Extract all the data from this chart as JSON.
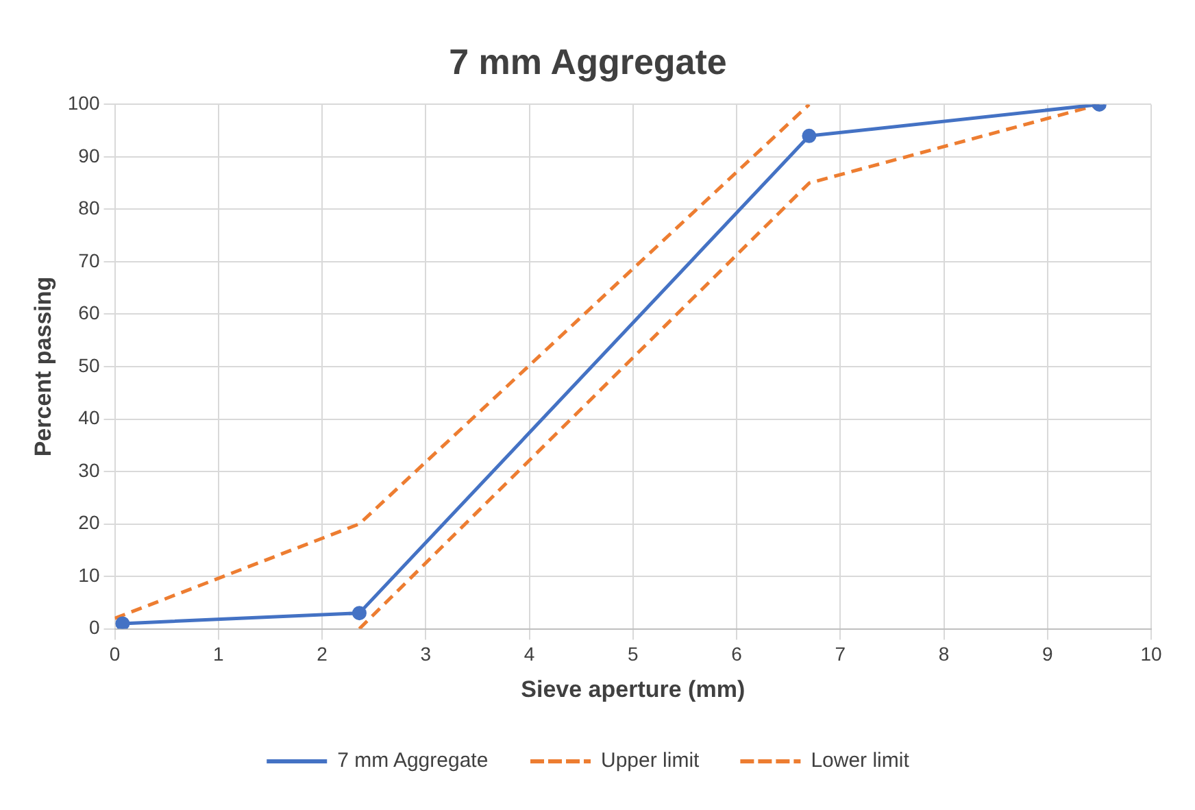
{
  "chart_data": {
    "type": "line",
    "title": "7 mm Aggregate",
    "xlabel": "Sieve aperture (mm)",
    "ylabel": "Percent passing",
    "series": [
      {
        "name": "7 mm Aggregate",
        "color": "#4472c4",
        "x": [
          0.075,
          2.36,
          6.7,
          9.5
        ],
        "values": [
          1,
          3,
          94,
          100
        ],
        "marker": "circle",
        "line_style": "solid"
      },
      {
        "name": "Upper limit",
        "color": "#ed7d31",
        "x": [
          0,
          2.36,
          6.7
        ],
        "values": [
          2,
          20,
          100
        ],
        "marker": "none",
        "line_style": "dashed"
      },
      {
        "name": "Lower limit",
        "color": "#ed7d31",
        "x": [
          2.36,
          6.7,
          9.5
        ],
        "values": [
          0,
          85,
          100
        ],
        "marker": "none",
        "line_style": "dashed"
      }
    ],
    "xlim": [
      0,
      10
    ],
    "xticks": [
      0,
      1,
      2,
      3,
      4,
      5,
      6,
      7,
      8,
      9,
      10
    ],
    "ylim": [
      0,
      100
    ],
    "yticks": [
      0,
      10,
      20,
      30,
      40,
      50,
      60,
      70,
      80,
      90,
      100
    ],
    "grid": true,
    "legend": "bottom"
  }
}
